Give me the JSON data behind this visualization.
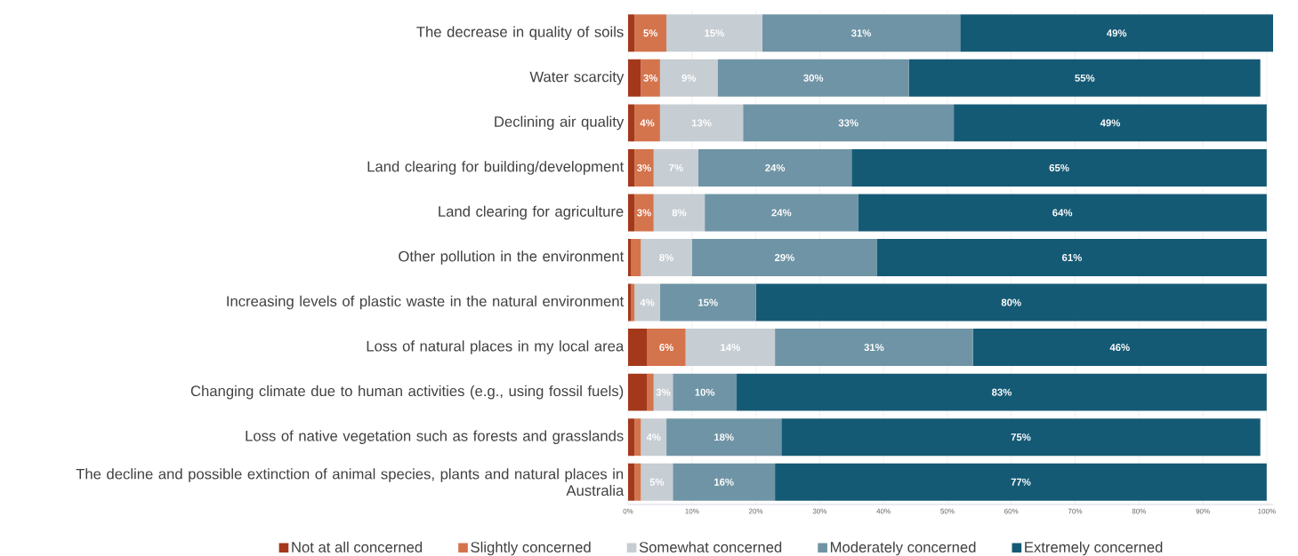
{
  "chart_data": {
    "type": "bar",
    "orientation": "horizontal",
    "stacked": true,
    "grid": "x",
    "legend": "bottom",
    "categories": [
      "The decrease in quality of soils",
      "Water scarcity",
      "Declining air quality",
      "Land clearing for building/development",
      "Land clearing for agriculture",
      "Other pollution in the environment",
      "Increasing levels of plastic waste in the natural environment",
      "Loss of natural places in my local area",
      "Changing climate due to human activities (e.g., using fossil fuels)",
      "Loss of native vegetation such as forests and grasslands",
      "The decline and possible extinction of animal species, plants and natural places in Australia"
    ],
    "series": [
      {
        "name": "Not at all concerned",
        "color": "#a3381b",
        "values": [
          1,
          2,
          1,
          1,
          1,
          0.5,
          0.5,
          3,
          3,
          1,
          1
        ],
        "value_labels": [
          null,
          null,
          null,
          null,
          null,
          null,
          null,
          null,
          null,
          null,
          null
        ]
      },
      {
        "name": "Slightly concerned",
        "color": "#d4744d",
        "values": [
          5,
          3,
          4,
          3,
          3,
          1.5,
          0.5,
          6,
          1,
          1,
          1
        ],
        "value_labels": [
          "5%",
          "3%",
          "4%",
          "3%",
          "3%",
          null,
          null,
          "6%",
          null,
          null,
          null
        ]
      },
      {
        "name": "Somewhat concerned",
        "color": "#c6cdd3",
        "values": [
          15,
          9,
          13,
          7,
          8,
          8,
          4,
          14,
          3,
          4,
          5
        ],
        "value_labels": [
          "15%",
          "9%",
          "13%",
          "7%",
          "8%",
          "8%",
          "4%",
          "14%",
          "3%",
          "4%",
          "5%"
        ]
      },
      {
        "name": "Moderately concerned",
        "color": "#6f94a5",
        "values": [
          31,
          30,
          33,
          24,
          24,
          29,
          15,
          31,
          10,
          18,
          16
        ],
        "value_labels": [
          "31%",
          "30%",
          "33%",
          "24%",
          "24%",
          "29%",
          "15%",
          "31%",
          "10%",
          "18%",
          "16%"
        ]
      },
      {
        "name": "Extremely concerned",
        "color": "#155a75",
        "values": [
          49,
          55,
          49,
          65,
          64,
          61,
          80,
          46,
          83,
          75,
          77
        ],
        "value_labels": [
          "49%",
          "55%",
          "49%",
          "65%",
          "64%",
          "61%",
          "80%",
          "46%",
          "83%",
          "75%",
          "77%"
        ]
      }
    ],
    "xlim": [
      0,
      101
    ],
    "xticks": [
      {
        "value": 0,
        "label": "0%"
      },
      {
        "value": 10,
        "label": "10%"
      },
      {
        "value": 20,
        "label": "20%"
      },
      {
        "value": 30,
        "label": "30%"
      },
      {
        "value": 40,
        "label": "40%"
      },
      {
        "value": 50,
        "label": "50%"
      },
      {
        "value": 60,
        "label": "60%"
      },
      {
        "value": 70,
        "label": "70%"
      },
      {
        "value": 80,
        "label": "80%"
      },
      {
        "value": 90,
        "label": "90%"
      },
      {
        "value": 100,
        "label": "100%"
      }
    ]
  }
}
